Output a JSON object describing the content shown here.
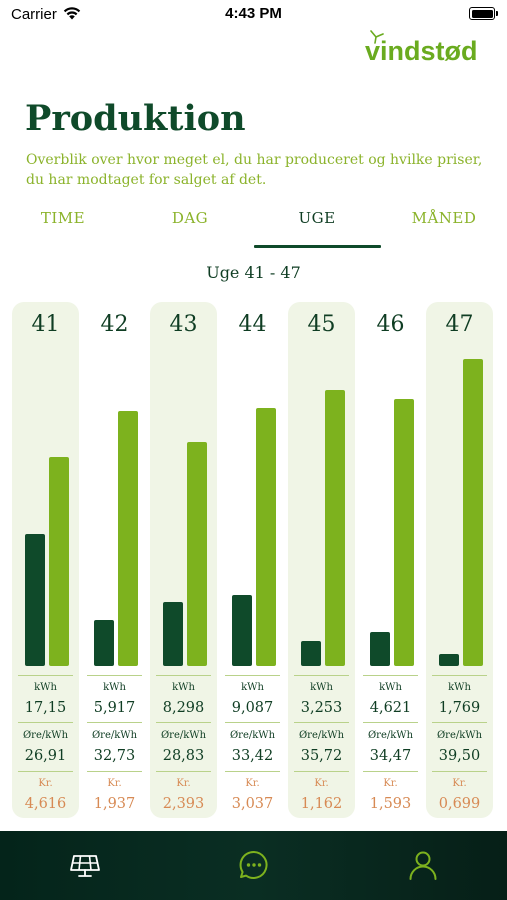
{
  "status_bar": {
    "carrier": "Carrier",
    "time": "4:43 PM"
  },
  "logo": {
    "text": "vindstød"
  },
  "page": {
    "title": "Produktion",
    "subtitle": "Overblik over hvor meget el, du har produceret og hvilke priser, du har modtaget for salget af det."
  },
  "tabs": [
    {
      "label": "TIME",
      "active": false
    },
    {
      "label": "DAG",
      "active": false
    },
    {
      "label": "UGE",
      "active": true
    },
    {
      "label": "MÅNED",
      "active": false
    }
  ],
  "range_label": "Uge 41 - 47",
  "labels": {
    "kwh": "kWh",
    "ore": "Øre/kWh",
    "kr": "Kr."
  },
  "colors": {
    "dark_bar": "#0f4a2a",
    "light_bar": "#7db21e",
    "accent_green": "#8bb32b",
    "price_orange": "#d78a54"
  },
  "weeks": [
    {
      "week": "41",
      "kwh": "17,15",
      "ore_kwh": "26,91",
      "kr": "4,616",
      "dark_level": 0.43,
      "light_level": 0.68
    },
    {
      "week": "42",
      "kwh": "5,917",
      "ore_kwh": "32,73",
      "kr": "1,937",
      "dark_level": 0.15,
      "light_level": 0.83
    },
    {
      "week": "43",
      "kwh": "8,298",
      "ore_kwh": "28,83",
      "kr": "2,393",
      "dark_level": 0.21,
      "light_level": 0.73
    },
    {
      "week": "44",
      "kwh": "9,087",
      "ore_kwh": "33,42",
      "kr": "3,037",
      "dark_level": 0.23,
      "light_level": 0.84
    },
    {
      "week": "45",
      "kwh": "3,253",
      "ore_kwh": "35,72",
      "kr": "1,162",
      "dark_level": 0.08,
      "light_level": 0.9
    },
    {
      "week": "46",
      "kwh": "4,621",
      "ore_kwh": "34,47",
      "kr": "1,593",
      "dark_level": 0.11,
      "light_level": 0.87
    },
    {
      "week": "47",
      "kwh": "1,769",
      "ore_kwh": "39,50",
      "kr": "0,699",
      "dark_level": 0.04,
      "light_level": 1.0
    }
  ],
  "nav": [
    {
      "icon": "solar-panel-icon"
    },
    {
      "icon": "chat-bubble-icon"
    },
    {
      "icon": "user-icon"
    }
  ]
}
